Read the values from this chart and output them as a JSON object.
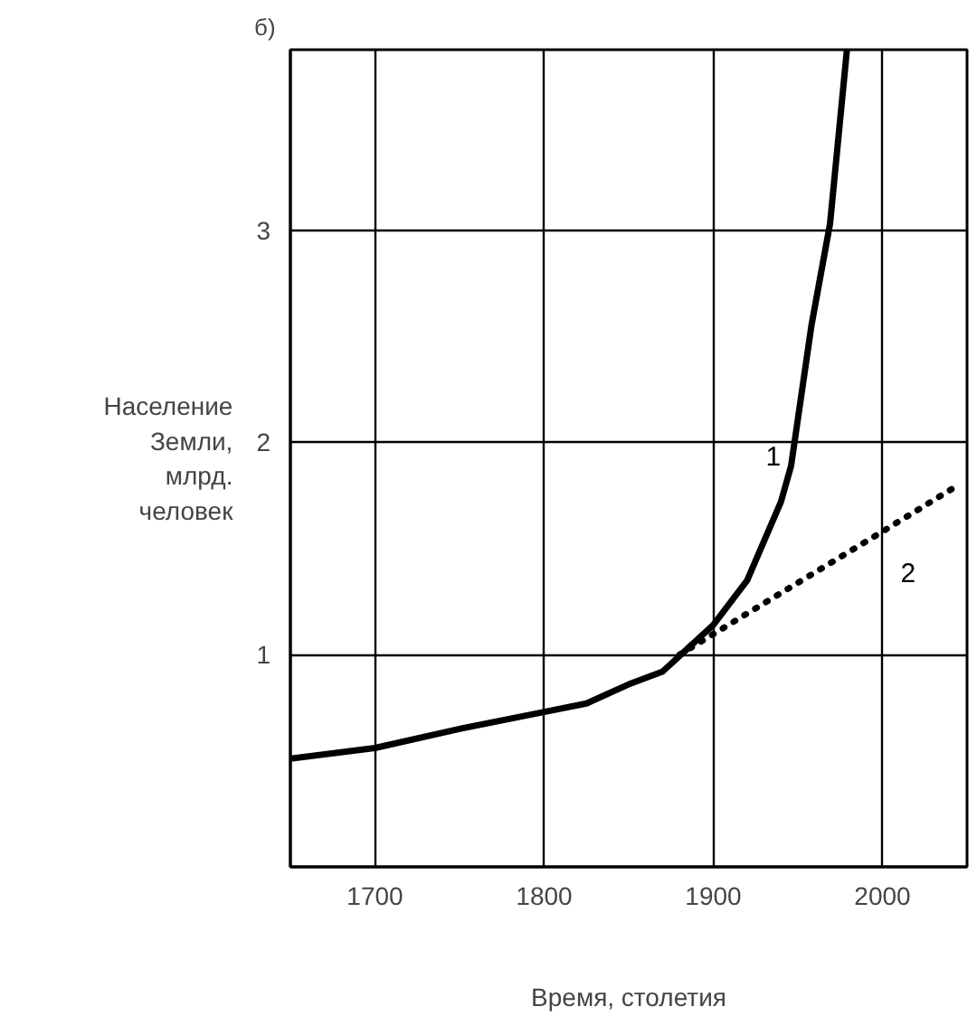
{
  "chart_data": {
    "type": "line",
    "title": "б)",
    "xlabel": "Время, столетия",
    "ylabel": "Население\nЗемли,\nмлрд.\nчеловек",
    "xlim": [
      1650,
      2050
    ],
    "ylim": [
      0,
      3.85
    ],
    "xticks": [
      1700,
      1800,
      1900,
      2000
    ],
    "yticks": [
      1,
      2,
      3
    ],
    "grid": true,
    "series": [
      {
        "name": "1",
        "color": "#000000",
        "line_style": "solid",
        "x": [
          1650,
          1700,
          1750,
          1800,
          1825,
          1850,
          1870,
          1900,
          1920,
          1940,
          1946,
          1958,
          1969,
          1979
        ],
        "values": [
          0.51,
          0.56,
          0.65,
          0.73,
          0.77,
          0.86,
          0.92,
          1.14,
          1.35,
          1.72,
          1.89,
          2.55,
          3.03,
          3.85
        ]
      },
      {
        "name": "2",
        "color": "#000000",
        "line_style": "dotted",
        "x": [
          1880,
          2000,
          2045
        ],
        "values": [
          1.0,
          1.58,
          1.8
        ]
      }
    ]
  }
}
